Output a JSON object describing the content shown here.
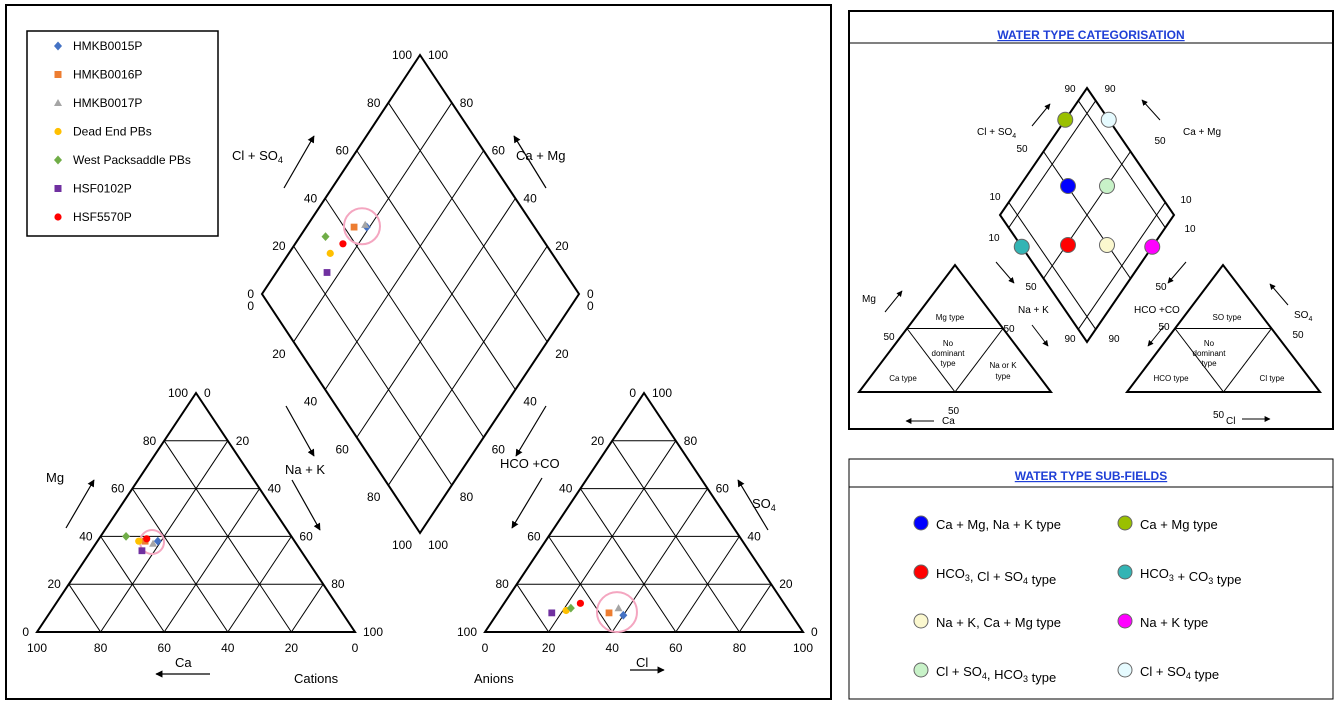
{
  "chart_data": {
    "type": "scatter",
    "diagram": "Piper trilinear diagram",
    "legend_position": "top-left",
    "series": [
      {
        "name": "HMKB0015P",
        "color": "#4472c4",
        "marker": "diamond",
        "cations": {
          "Ca": 43,
          "Mg": 38
        },
        "anions": {
          "Cl": 40,
          "SO4": 7
        }
      },
      {
        "name": "HMKB0016P",
        "color": "#ed7d31",
        "marker": "square",
        "cations": {
          "Ca": 47,
          "Mg": 38
        },
        "anions": {
          "Cl": 35,
          "SO4": 8
        }
      },
      {
        "name": "HMKB0017P",
        "color": "#a5a5a5",
        "marker": "triangle",
        "cations": {
          "Ca": 45,
          "Mg": 37
        },
        "anions": {
          "Cl": 37,
          "SO4": 10
        }
      },
      {
        "name": "Dead End PBs",
        "color": "#ffc000",
        "marker": "circle",
        "cations": {
          "Ca": 49,
          "Mg": 38
        },
        "anions": {
          "Cl": 21,
          "SO4": 9
        }
      },
      {
        "name": "West Packsaddle PBs",
        "color": "#70ad47",
        "marker": "diamond",
        "cations": {
          "Ca": 52,
          "Mg": 40
        },
        "anions": {
          "Cl": 22,
          "SO4": 10
        }
      },
      {
        "name": "HSF0102P",
        "color": "#7030a0",
        "marker": "square",
        "cations": {
          "Ca": 50,
          "Mg": 34
        },
        "anions": {
          "Cl": 17,
          "SO4": 8
        }
      },
      {
        "name": "HSF5570P",
        "color": "#ff0000",
        "marker": "circle",
        "cations": {
          "Ca": 46,
          "Mg": 39
        },
        "anions": {
          "Cl": 24,
          "SO4": 12
        }
      }
    ],
    "axis_titles": {
      "cl_so4": "Cl + SO",
      "ca_mg": "Ca + Mg",
      "na_k": "Na + K",
      "hco3_co3": "HCO +CO",
      "mg": "Mg",
      "ca": "Ca",
      "so4": "SO",
      "cl": "Cl",
      "cations": "Cations",
      "anions": "Anions"
    },
    "subscripts": {
      "four": "4",
      "three": "3"
    },
    "ticks": {
      "tri_left": [
        "0",
        "20",
        "40",
        "60",
        "80",
        "100"
      ],
      "tri_right": [
        "100",
        "80",
        "60",
        "40",
        "20",
        "0"
      ],
      "bottom_cation": [
        "100",
        "80",
        "60",
        "40",
        "20",
        "0"
      ],
      "bottom_anion": [
        "0",
        "20",
        "40",
        "60",
        "80",
        "100"
      ],
      "diamond_up": [
        "0",
        "20",
        "40",
        "60",
        "80",
        "100"
      ],
      "diamond_down": [
        "0",
        "20",
        "40",
        "60",
        "80",
        "100"
      ]
    }
  },
  "categorisation": {
    "title": "WATER TYPE CATEGORISATION",
    "labels": {
      "cl_so4": "Cl + SO",
      "ca_mg": "Ca + Mg",
      "na_k": "Na + K",
      "hco3_co3": "HCO +CO",
      "mg": "Mg",
      "so4": "SO",
      "ca": "Ca",
      "cl": "Cl",
      "mg_type": "Mg  type",
      "so4_type": "SO  type",
      "ca_type": "Ca  type",
      "nak_type_1": "Na or K",
      "nak_type_2": "type",
      "hco3_type": "HCO  type",
      "cl_type": "Cl type",
      "no_dom_1": "No",
      "no_dom_2": "dominant",
      "no_dom_3": "type",
      "sub4": "4",
      "sub3": "3"
    },
    "numbers": {
      "n90": "90",
      "n50": "50",
      "n10": "10"
    },
    "points": [
      {
        "color": "#9ac000"
      },
      {
        "color": "#e6fbff"
      },
      {
        "color": "#0000ff"
      },
      {
        "color": "#c8f2c8"
      },
      {
        "color": "#ff0000"
      },
      {
        "color": "#fbf8cf"
      },
      {
        "color": "#33b4b4"
      },
      {
        "color": "#ff00ff"
      }
    ]
  },
  "subfields": {
    "title": "WATER TYPE SUB-FIELDS",
    "items": [
      {
        "color": "#0000ff",
        "parts": [
          [
            "Ca + Mg, Na + K type",
            ""
          ]
        ]
      },
      {
        "color": "#9ac000",
        "parts": [
          [
            "Ca + Mg type",
            ""
          ]
        ]
      },
      {
        "color": "#ff0000",
        "parts": [
          [
            "HCO",
            "3"
          ],
          [
            ", Cl + SO",
            "4"
          ],
          [
            " type",
            ""
          ]
        ]
      },
      {
        "color": "#33b4b4",
        "parts": [
          [
            "HCO",
            "3"
          ],
          [
            " + CO",
            "3"
          ],
          [
            " type",
            ""
          ]
        ]
      },
      {
        "color": "#fbf8cf",
        "parts": [
          [
            "Na + K, Ca + Mg type",
            ""
          ]
        ]
      },
      {
        "color": "#ff00ff",
        "parts": [
          [
            "Na + K type",
            ""
          ]
        ]
      },
      {
        "color": "#c8f2c8",
        "parts": [
          [
            "Cl + SO",
            "4"
          ],
          [
            ", HCO",
            "3"
          ],
          [
            " type",
            ""
          ]
        ]
      },
      {
        "color": "#e6fbff",
        "parts": [
          [
            "Cl + SO",
            "4"
          ],
          [
            " type",
            ""
          ]
        ]
      }
    ]
  }
}
